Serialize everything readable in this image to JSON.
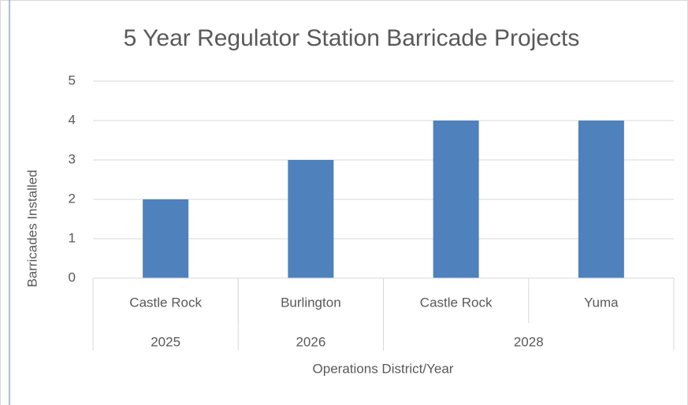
{
  "chart_data": {
    "type": "bar",
    "title": "5 Year Regulator Station Barricade Projects",
    "x_label": "Operations District/Year",
    "y_label": "Barricades Installed",
    "categories": [
      "Castle Rock",
      "Burlington",
      "Castle Rock",
      "Yuma"
    ],
    "category_groups": [
      {
        "label": "2025",
        "count": 1
      },
      {
        "label": "2026",
        "count": 1
      },
      {
        "label": "2028",
        "count": 2
      }
    ],
    "values": [
      2,
      3,
      4,
      4
    ],
    "color": "#4f81bd",
    "ylim": [
      0,
      5
    ],
    "yticks": [
      0,
      1,
      2,
      3,
      4,
      5
    ],
    "grid": true
  }
}
